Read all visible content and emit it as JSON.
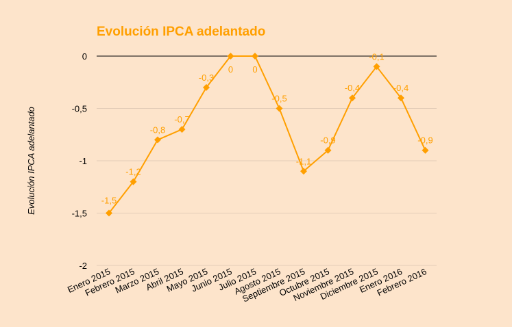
{
  "chart_data": {
    "type": "line",
    "title": "Evolución IPCA adelantado",
    "xlabel": "",
    "ylabel": "Evolución IPCA adelantado",
    "categories": [
      "Enero 2015",
      "Febrero 2015",
      "Marzo 2015",
      "Abril 2015",
      "Mayo 2015",
      "Junio 2015",
      "Julio 2015",
      "Agosto 2015",
      "Septiembre 2015",
      "Octubre 2015",
      "Noviembre 2015",
      "Diciembre 2015",
      "Enero 2016",
      "Febrero 2016"
    ],
    "series": [
      {
        "values": [
          -1.5,
          -1.2,
          -0.8,
          -0.7,
          -0.3,
          0,
          0,
          -0.5,
          -1.1,
          -0.9,
          -0.4,
          -0.1,
          -0.4,
          -0.9
        ],
        "value_labels": [
          "-1,5",
          "-1,2",
          "-0,8",
          "-0,7",
          "-0,3",
          "0",
          "0",
          "-0,5",
          "-1,1",
          "-0,9",
          "-0,4",
          "-0,1",
          "-0,4",
          "-0,9"
        ]
      }
    ],
    "ylim": [
      -2,
      0
    ],
    "yticks": [
      0,
      -0.5,
      -1,
      -1.5,
      -2
    ],
    "ytick_labels": [
      "0",
      "-0,5",
      "-1",
      "-1,5",
      "-2"
    ],
    "grid": true,
    "legend": "none",
    "colors": {
      "line": "#ff9f00",
      "marker": "#ff9f00",
      "data_label": "#ff9f00",
      "plot_bg": "#fde4cb",
      "grid": "#d9c4b0",
      "zero_line": "#000000",
      "text": "#000000"
    }
  }
}
